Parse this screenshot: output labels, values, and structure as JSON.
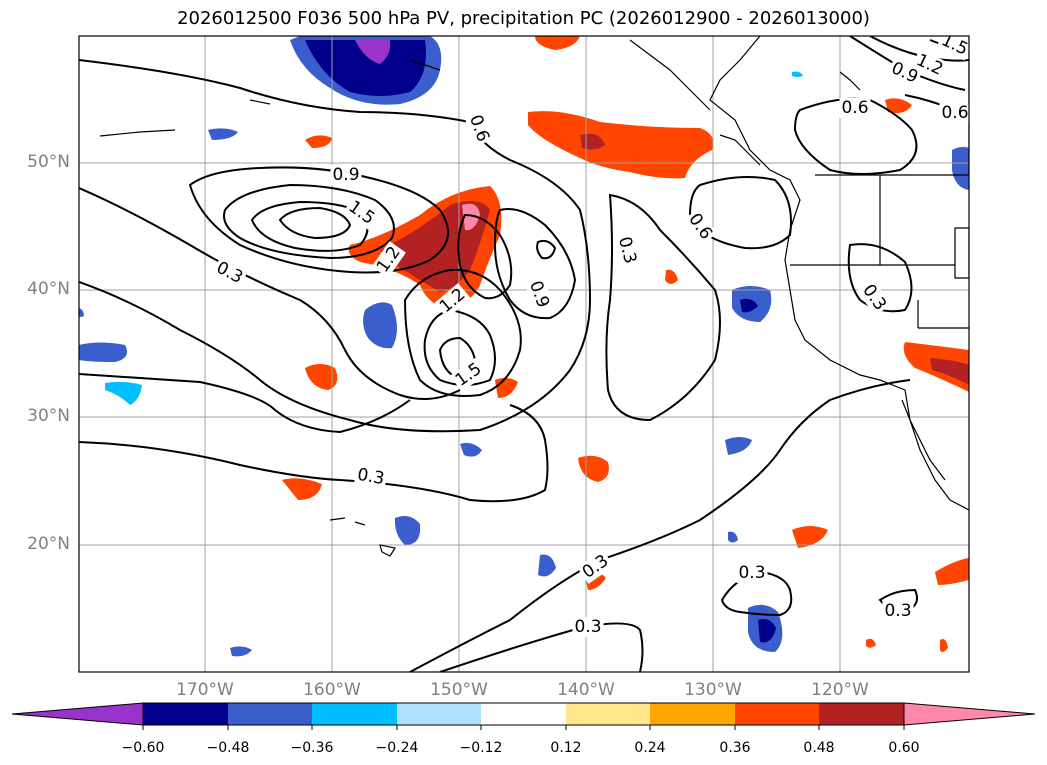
{
  "title": "2026012500 F036 500 hPa PV, precipitation PC (2026012900 - 2026013000)",
  "axes": {
    "lat_labels": [
      "50°N",
      "40°N",
      "30°N",
      "20°N"
    ],
    "lon_labels": [
      "170°W",
      "160°W",
      "150°W",
      "140°W",
      "130°W",
      "120°W"
    ]
  },
  "colorbar": {
    "ticks": [
      "−0.60",
      "−0.48",
      "−0.36",
      "−0.24",
      "−0.12",
      "0.12",
      "0.24",
      "0.36",
      "0.48",
      "0.60"
    ],
    "colors": [
      "#9933cc",
      "#00008b",
      "#3a5fcd",
      "#00bfff",
      "#b0e2ff",
      "#ffffff",
      "#ffe68c",
      "#ffa500",
      "#ff4500",
      "#b22222",
      "#ff88aa"
    ]
  },
  "contour_labels": {
    "c1": "0.3",
    "c2": "0.3",
    "c3": "0.3",
    "c4": "0.3",
    "c5": "0.3",
    "c6": "0.3",
    "c7": "0.3",
    "c8": "0.3",
    "c9": "0.6",
    "c10": "0.6",
    "c11": "0.6",
    "c12": "0.6",
    "c13": "0.9",
    "c14": "0.9",
    "c15": "0.9",
    "c16": "1.2",
    "c17": "1.2",
    "c18": "1.2",
    "c19": "1.5",
    "c20": "1.5",
    "c21": "1.5"
  }
}
